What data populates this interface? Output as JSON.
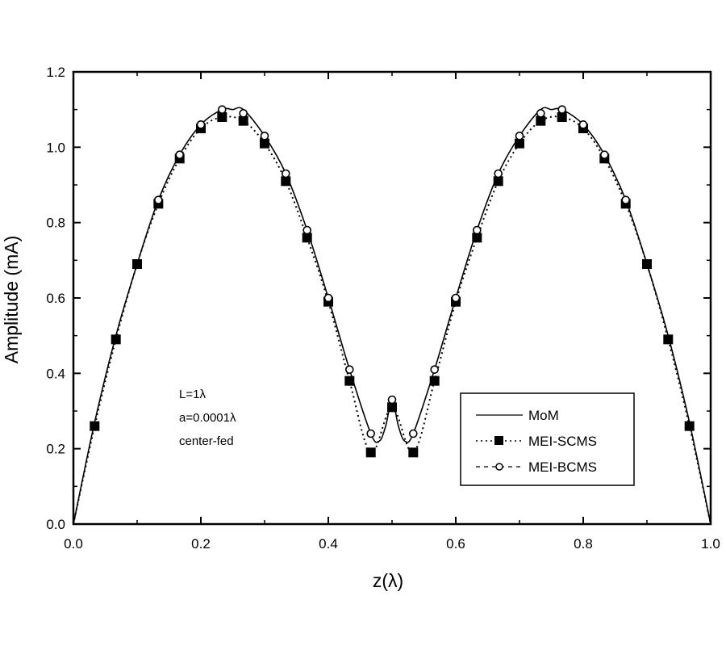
{
  "chart_data": {
    "type": "line",
    "title": "",
    "xlabel": "z(λ)",
    "ylabel": "Amplitude (mA)",
    "xlim": [
      0.0,
      1.0
    ],
    "ylim": [
      0.0,
      1.2
    ],
    "xticks": [
      "0.0",
      "0.2",
      "0.4",
      "0.6",
      "0.8",
      "1.0"
    ],
    "yticks": [
      "0.0",
      "0.2",
      "0.4",
      "0.6",
      "0.8",
      "1.0",
      "1.2"
    ],
    "grid": false,
    "legend_position": "lower right",
    "annotations": [
      "L=1λ",
      "a=0.0001λ",
      "center-fed"
    ],
    "x": [
      0.0,
      0.0333,
      0.0667,
      0.1,
      0.1333,
      0.1667,
      0.2,
      0.2333,
      0.2667,
      0.3,
      0.3333,
      0.3667,
      0.4,
      0.4333,
      0.4667,
      0.5,
      0.5333,
      0.5667,
      0.6,
      0.6333,
      0.6667,
      0.7,
      0.7333,
      0.7667,
      0.8,
      0.8333,
      0.8667,
      0.9,
      0.9333,
      0.9667,
      1.0
    ],
    "series": [
      {
        "name": "MoM",
        "style": "solid",
        "marker": "none",
        "x": [
          0.0,
          0.0333,
          0.0667,
          0.1,
          0.1333,
          0.1667,
          0.2,
          0.2333,
          0.25,
          0.2667,
          0.3,
          0.3333,
          0.3667,
          0.4,
          0.4333,
          0.4667,
          0.48,
          0.49,
          0.5,
          0.51,
          0.52,
          0.5333,
          0.5667,
          0.6,
          0.6333,
          0.6667,
          0.7,
          0.7333,
          0.75,
          0.7667,
          0.8,
          0.8333,
          0.8667,
          0.9,
          0.9333,
          0.9667,
          1.0
        ],
        "values": [
          0.0,
          0.27,
          0.5,
          0.69,
          0.86,
          0.98,
          1.06,
          1.1,
          1.1,
          1.1,
          1.03,
          0.93,
          0.78,
          0.6,
          0.41,
          0.24,
          0.22,
          0.26,
          0.33,
          0.26,
          0.22,
          0.24,
          0.41,
          0.6,
          0.78,
          0.93,
          1.03,
          1.1,
          1.1,
          1.1,
          1.06,
          0.98,
          0.86,
          0.69,
          0.5,
          0.27,
          0.0
        ]
      },
      {
        "name": "MEI-SCMS",
        "style": "dotted",
        "marker": "filled-square",
        "x": [
          0.0333,
          0.0667,
          0.1,
          0.1333,
          0.1667,
          0.2,
          0.2333,
          0.2667,
          0.3,
          0.3333,
          0.3667,
          0.4,
          0.4333,
          0.4667,
          0.5,
          0.5333,
          0.5667,
          0.6,
          0.6333,
          0.6667,
          0.7,
          0.7333,
          0.7667,
          0.8,
          0.8333,
          0.8667,
          0.9,
          0.9333,
          0.9667
        ],
        "values": [
          0.26,
          0.49,
          0.69,
          0.85,
          0.97,
          1.05,
          1.08,
          1.07,
          1.01,
          0.91,
          0.76,
          0.59,
          0.38,
          0.19,
          0.31,
          0.19,
          0.38,
          0.59,
          0.76,
          0.91,
          1.01,
          1.07,
          1.08,
          1.05,
          0.97,
          0.85,
          0.69,
          0.49,
          0.26
        ]
      },
      {
        "name": "MEI-BCMS",
        "style": "dashed",
        "marker": "open-circle",
        "x": [
          0.1333,
          0.1667,
          0.2,
          0.2333,
          0.2667,
          0.3,
          0.3333,
          0.3667,
          0.4,
          0.4333,
          0.4667,
          0.5,
          0.5333,
          0.5667,
          0.6,
          0.6333,
          0.6667,
          0.7,
          0.7333,
          0.7667,
          0.8,
          0.8333,
          0.8667
        ],
        "values": [
          0.86,
          0.98,
          1.06,
          1.1,
          1.09,
          1.03,
          0.93,
          0.78,
          0.6,
          0.41,
          0.24,
          0.33,
          0.24,
          0.41,
          0.6,
          0.78,
          0.93,
          1.03,
          1.09,
          1.1,
          1.06,
          0.98,
          0.86
        ]
      }
    ]
  },
  "labels": {
    "ylabel": "Amplitude (mA)",
    "xlabel": "z(λ)",
    "annot1": "L=1λ",
    "annot2": "a=0.0001λ",
    "annot3": "center-fed",
    "legend_mom": "MoM",
    "legend_scms": "MEI-SCMS",
    "legend_bcms": "MEI-BCMS"
  }
}
